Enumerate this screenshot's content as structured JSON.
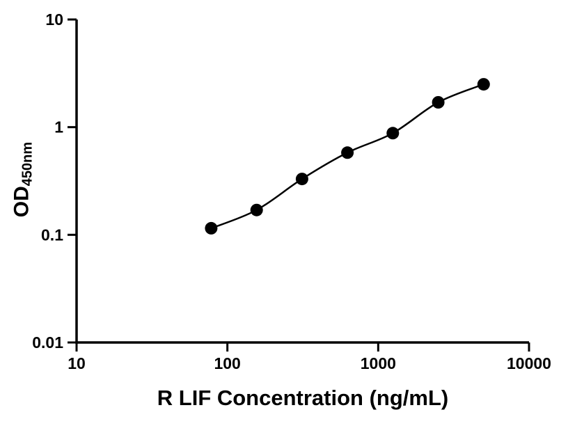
{
  "figure": {
    "background": "#ffffff"
  },
  "chart_data": {
    "type": "scatter",
    "title": "",
    "xlabel": "R LIF Concentration (ng/mL)",
    "ylabel": "OD450nm",
    "ylabel_main": "OD",
    "ylabel_sub": "450nm",
    "x_scale": "log",
    "y_scale": "log",
    "xlim": [
      10,
      10000
    ],
    "ylim": [
      0.01,
      10
    ],
    "x_ticks": [
      10,
      100,
      1000,
      10000
    ],
    "x_tick_labels": [
      "10",
      "100",
      "1000",
      "10000"
    ],
    "y_ticks": [
      0.01,
      0.1,
      1,
      10
    ],
    "y_tick_labels": [
      "0.01",
      "0.1",
      "1",
      "10"
    ],
    "grid": false,
    "legend": false,
    "axis_color": "#000000",
    "marker_color": "#000000",
    "line_color": "#000000",
    "marker": "circle",
    "series": [
      {
        "x": [
          78.125,
          156.25,
          312.5,
          625,
          1250,
          2500,
          5000
        ],
        "y": [
          0.115,
          0.17,
          0.33,
          0.58,
          0.88,
          1.7,
          2.5
        ],
        "fit_line": true
      }
    ]
  }
}
